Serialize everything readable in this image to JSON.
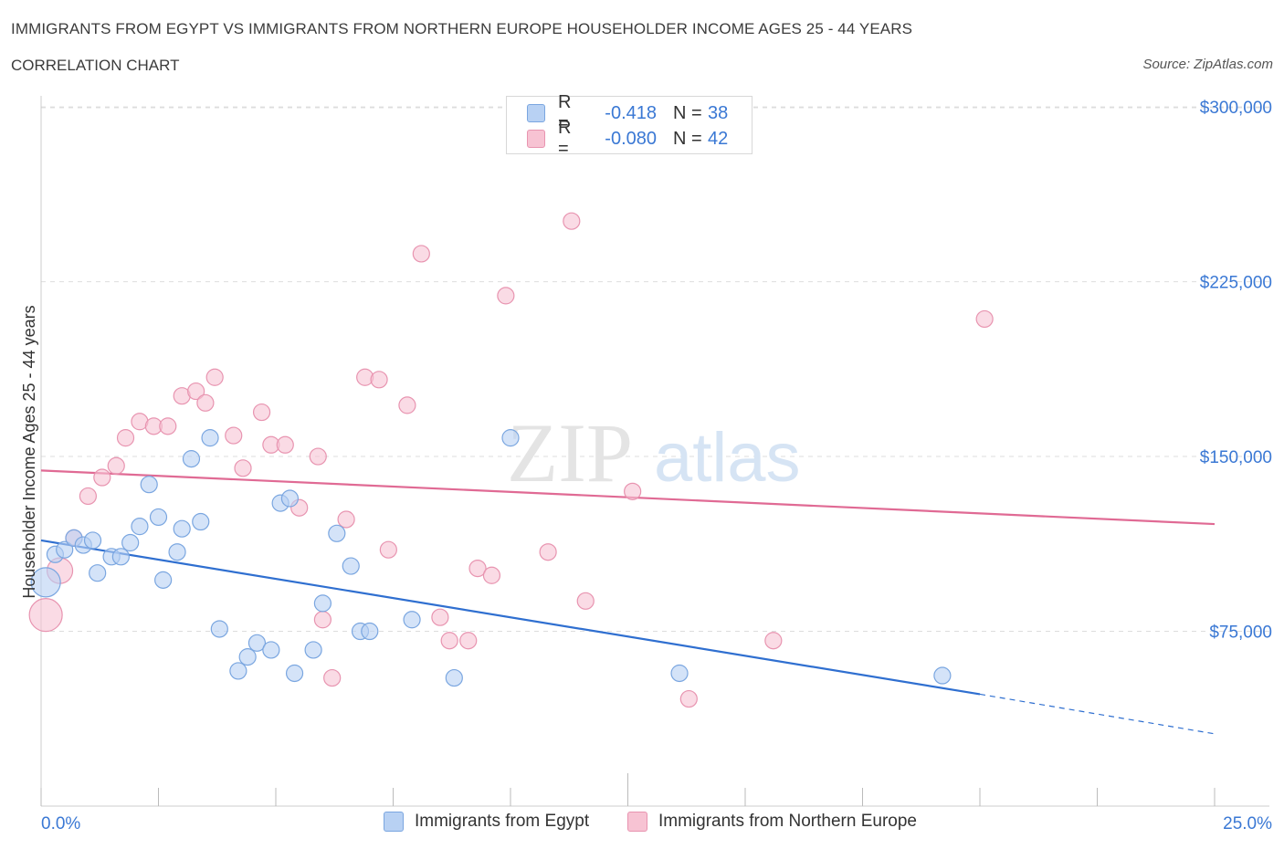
{
  "header": {
    "title": "IMMIGRANTS FROM EGYPT VS IMMIGRANTS FROM NORTHERN EUROPE HOUSEHOLDER INCOME AGES 25 - 44 YEARS",
    "subtitle": "CORRELATION CHART",
    "source": "Source: ZipAtlas.com"
  },
  "watermark": {
    "zip": "ZIP",
    "atlas": "atlas"
  },
  "legend": {
    "egypt": {
      "r_label": "R =",
      "r_value": "-0.418",
      "n_label": "N =",
      "n_value": "38"
    },
    "northern_europe": {
      "r_label": "R =",
      "r_value": "-0.080",
      "n_label": "N =",
      "n_value": "42"
    }
  },
  "colors": {
    "egypt_fill": "#b8d1f3",
    "egypt_stroke": "#7aa6e0",
    "egypt_line": "#2f6fd0",
    "ne_fill": "#f7c3d3",
    "ne_stroke": "#e894b0",
    "ne_line": "#e06a94",
    "axis_label": "#3a78d4",
    "grid": "#dddddd"
  },
  "chart_data": {
    "type": "scatter",
    "ylabel": "Householder Income Ages 25 - 44 years",
    "xlabel": "",
    "xlim": [
      0,
      25
    ],
    "ylim": [
      0,
      300000
    ],
    "x_tick_labels": [
      "0.0%",
      "25.0%"
    ],
    "y_ticks": [
      75000,
      150000,
      225000,
      300000
    ],
    "y_tick_labels": [
      "$75,000",
      "$150,000",
      "$225,000",
      "$300,000"
    ],
    "grid": true,
    "series": [
      {
        "name": "Immigrants from Egypt",
        "points": [
          [
            0.1,
            96000
          ],
          [
            0.3,
            108000
          ],
          [
            0.5,
            110000
          ],
          [
            0.7,
            115000
          ],
          [
            0.9,
            112000
          ],
          [
            1.1,
            114000
          ],
          [
            1.2,
            100000
          ],
          [
            1.5,
            107000
          ],
          [
            1.7,
            107000
          ],
          [
            1.9,
            113000
          ],
          [
            2.1,
            120000
          ],
          [
            2.3,
            138000
          ],
          [
            2.5,
            124000
          ],
          [
            2.6,
            97000
          ],
          [
            2.9,
            109000
          ],
          [
            3.0,
            119000
          ],
          [
            3.2,
            149000
          ],
          [
            3.4,
            122000
          ],
          [
            3.6,
            158000
          ],
          [
            3.8,
            76000
          ],
          [
            4.2,
            58000
          ],
          [
            4.4,
            64000
          ],
          [
            4.6,
            70000
          ],
          [
            4.9,
            67000
          ],
          [
            5.1,
            130000
          ],
          [
            5.3,
            132000
          ],
          [
            5.4,
            57000
          ],
          [
            5.8,
            67000
          ],
          [
            6.0,
            87000
          ],
          [
            6.3,
            117000
          ],
          [
            6.6,
            103000
          ],
          [
            6.8,
            75000
          ],
          [
            7.0,
            75000
          ],
          [
            7.9,
            80000
          ],
          [
            8.8,
            55000
          ],
          [
            10.0,
            158000
          ],
          [
            13.6,
            57000
          ],
          [
            19.2,
            56000
          ]
        ],
        "trend": [
          [
            0,
            114000
          ],
          [
            20,
            48000
          ],
          [
            25,
            31000
          ]
        ]
      },
      {
        "name": "Immigrants from Northern Europe",
        "points": [
          [
            0.1,
            82000
          ],
          [
            0.4,
            101000
          ],
          [
            0.7,
            115000
          ],
          [
            1.0,
            133000
          ],
          [
            1.3,
            141000
          ],
          [
            1.6,
            146000
          ],
          [
            1.8,
            158000
          ],
          [
            2.1,
            165000
          ],
          [
            2.4,
            163000
          ],
          [
            2.7,
            163000
          ],
          [
            3.0,
            176000
          ],
          [
            3.3,
            178000
          ],
          [
            3.5,
            173000
          ],
          [
            3.7,
            184000
          ],
          [
            4.1,
            159000
          ],
          [
            4.3,
            145000
          ],
          [
            4.7,
            169000
          ],
          [
            4.9,
            155000
          ],
          [
            5.2,
            155000
          ],
          [
            5.5,
            128000
          ],
          [
            5.9,
            150000
          ],
          [
            6.0,
            80000
          ],
          [
            6.2,
            55000
          ],
          [
            6.5,
            123000
          ],
          [
            6.9,
            184000
          ],
          [
            7.2,
            183000
          ],
          [
            7.4,
            110000
          ],
          [
            7.8,
            172000
          ],
          [
            8.1,
            237000
          ],
          [
            8.5,
            81000
          ],
          [
            8.7,
            71000
          ],
          [
            9.1,
            71000
          ],
          [
            9.3,
            102000
          ],
          [
            9.6,
            99000
          ],
          [
            9.9,
            219000
          ],
          [
            10.8,
            109000
          ],
          [
            11.3,
            251000
          ],
          [
            11.6,
            88000
          ],
          [
            12.6,
            135000
          ],
          [
            13.8,
            46000
          ],
          [
            15.6,
            71000
          ],
          [
            20.1,
            209000
          ]
        ],
        "trend": [
          [
            0,
            144000
          ],
          [
            25,
            121000
          ]
        ]
      }
    ]
  },
  "bottom_legend": {
    "egypt_label": "Immigrants from Egypt",
    "ne_label": "Immigrants from Northern Europe"
  }
}
